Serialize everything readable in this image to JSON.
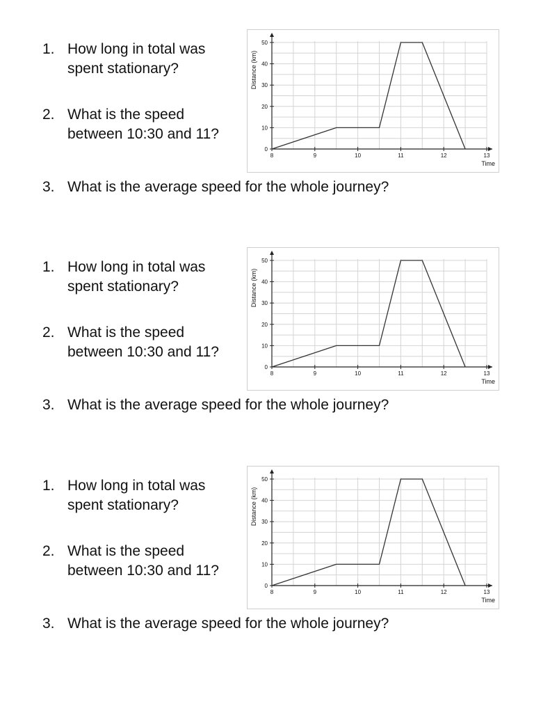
{
  "questions": {
    "q1": {
      "number": "1.",
      "line1": "How long in total was",
      "line2": "spent stationary?"
    },
    "q2": {
      "number": "2.",
      "line1": "What is the speed",
      "line2": "between 10:30 and 11?"
    },
    "q3": {
      "number": "3.",
      "line1": "What is the average speed for the whole journey?"
    }
  },
  "chart_data": {
    "type": "line",
    "xlabel": "Time",
    "ylabel": "Distance (km)",
    "xlim": [
      8,
      13
    ],
    "ylim": [
      0,
      50
    ],
    "x_ticks": [
      "8",
      "9",
      "10",
      "11",
      "12",
      "13"
    ],
    "y_ticks": [
      "0",
      "10",
      "20",
      "30",
      "40",
      "50"
    ],
    "grid": true,
    "series": [
      {
        "x": [
          8,
          9.5,
          10.5,
          11,
          11.5,
          12.5
        ],
        "y": [
          0,
          10,
          10,
          50,
          50,
          0
        ]
      }
    ],
    "line_color": "#333333",
    "grid_color": "#d4d4d4"
  }
}
